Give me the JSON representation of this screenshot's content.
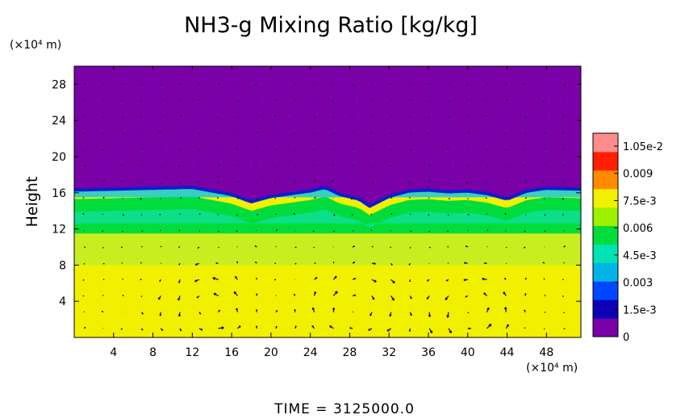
{
  "chart_data": {
    "type": "heatmap",
    "title": "NH3-g Mixing Ratio [kg/kg]",
    "ylabel": "Height",
    "y_unit": "(×10⁴ m)",
    "x_unit": "(×10⁴ m)",
    "time_label": "TIME = 3125000.0",
    "xlim": [
      0,
      51.5
    ],
    "ylim": [
      0,
      30
    ],
    "x_ticks": [
      "4",
      "8",
      "12",
      "16",
      "20",
      "24",
      "28",
      "32",
      "36",
      "40",
      "44",
      "48"
    ],
    "x_tick_values": [
      4,
      8,
      12,
      16,
      20,
      24,
      28,
      32,
      36,
      40,
      44,
      48
    ],
    "y_ticks": [
      "4",
      "8",
      "12",
      "16",
      "20",
      "24",
      "28"
    ],
    "y_tick_values": [
      4,
      8,
      12,
      16,
      20,
      24,
      28
    ],
    "colorbar": {
      "min": 0,
      "max": 0.0105,
      "labels": [
        "1.05e-2",
        "0.009",
        "7.5e-3",
        "0.006",
        "4.5e-3",
        "0.003",
        "1.5e-3",
        "0"
      ],
      "label_values": [
        0.0105,
        0.009,
        0.0075,
        0.006,
        0.0045,
        0.003,
        0.0015,
        0
      ],
      "colors": [
        "#7a00a8",
        "#0d00b5",
        "#0048ff",
        "#00b4e8",
        "#00e3b4",
        "#00dc3c",
        "#9cf000",
        "#f0f000",
        "#ff8a00",
        "#ff1e00",
        "#ff8c8c"
      ]
    },
    "regions": [
      {
        "y_range": [
          0,
          8
        ],
        "value": 0.0075
      },
      {
        "y_range": [
          8,
          11.5
        ],
        "value": 0.0072
      },
      {
        "y_range": [
          11.5,
          15.5
        ],
        "value": 0.0052
      },
      {
        "y_range": [
          15.5,
          16.5
        ],
        "value": 0.003
      },
      {
        "y_range": [
          16.5,
          30
        ],
        "value": 0
      }
    ],
    "interface_height_profile": [
      [
        0,
        16.3
      ],
      [
        4,
        16.4
      ],
      [
        8,
        16.5
      ],
      [
        12,
        16.6
      ],
      [
        16,
        15.8
      ],
      [
        18,
        15.0
      ],
      [
        20,
        15.6
      ],
      [
        24,
        16.2
      ],
      [
        25.5,
        16.6
      ],
      [
        27,
        15.8
      ],
      [
        29,
        15.3
      ],
      [
        30,
        14.5
      ],
      [
        32,
        15.6
      ],
      [
        34,
        16.2
      ],
      [
        36,
        16.3
      ],
      [
        38,
        16.1
      ],
      [
        40,
        16.2
      ],
      [
        42,
        15.9
      ],
      [
        44,
        15.3
      ],
      [
        46,
        16.2
      ],
      [
        48,
        16.5
      ],
      [
        51.5,
        16.4
      ]
    ],
    "circulation_cells": [
      {
        "center": [
          14,
          3
        ],
        "radius": [
          3.5,
          3.3
        ]
      },
      {
        "center": [
          29,
          3
        ],
        "radius": [
          3.5,
          3.3
        ]
      },
      {
        "center": [
          40,
          3
        ],
        "radius": [
          3.2,
          3.3
        ]
      }
    ]
  }
}
